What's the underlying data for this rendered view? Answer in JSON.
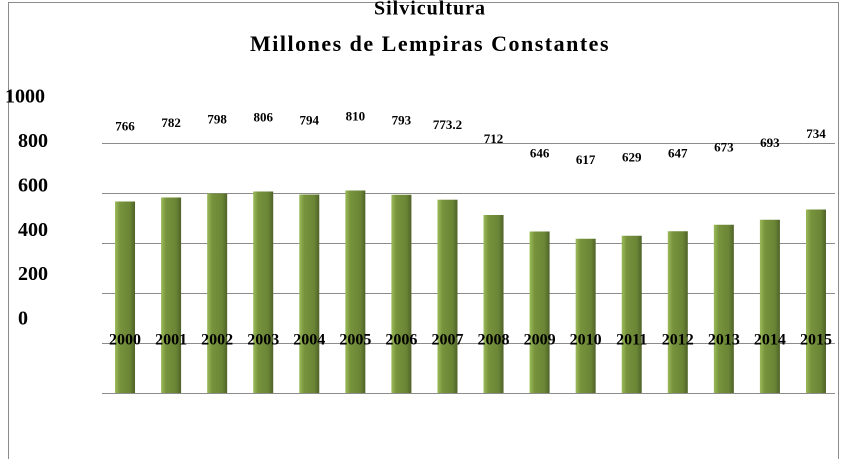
{
  "chart_data": {
    "type": "bar",
    "title": "Silvicultura",
    "subtitle": "Millones de Lempiras Constantes",
    "categories": [
      "2000",
      "2001",
      "2002",
      "2003",
      "2004",
      "2005",
      "2006",
      "2007",
      "2008",
      "2009",
      "2010",
      "2011",
      "2012",
      "2013",
      "2014",
      "2015"
    ],
    "values": [
      766,
      782,
      798,
      806,
      794,
      810,
      793,
      773.2,
      712,
      646,
      617,
      629,
      647,
      673,
      693,
      734
    ],
    "color": "#77933c",
    "ylim": [
      0,
      1000
    ],
    "yticks": [
      0,
      200,
      400,
      600,
      800,
      1000
    ],
    "grid": true
  }
}
